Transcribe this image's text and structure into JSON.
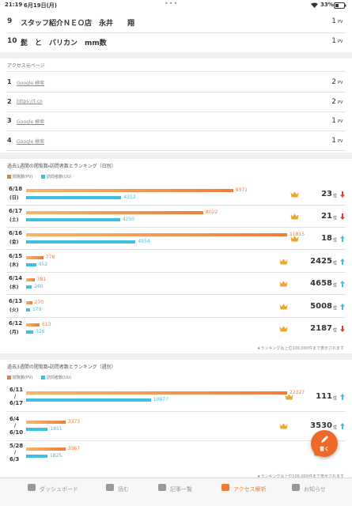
{
  "status_bar": {
    "time": "21:19",
    "date": "6月19日(月)",
    "battery": "33%"
  },
  "article_ranking": {
    "rows": [
      {
        "rank": 9,
        "title": "スタッフ紹介ＮＥＯ店　永井　　翔",
        "count": 1,
        "unit": "PV"
      },
      {
        "rank": 10,
        "title": "髭　と　バリカン　mm数",
        "count": 1,
        "unit": "PV"
      }
    ]
  },
  "referrers": {
    "title": "アクセス元ページ",
    "rows": [
      {
        "rank": 1,
        "source": "Google 検索",
        "count": 2,
        "unit": "PV"
      },
      {
        "rank": 2,
        "source": "https://t.co",
        "count": 2,
        "unit": "PV"
      },
      {
        "rank": 3,
        "source": "Google 検索",
        "count": 1,
        "unit": "PV"
      },
      {
        "rank": 4,
        "source": "Google 検索",
        "count": 1,
        "unit": "PV"
      }
    ]
  },
  "daily": {
    "title": "過去1週間の閲覧数・訪問者数とランキング（日別）",
    "legend": {
      "pv": {
        "name": "閲覧数(PV)",
        "color": "#ef7d3a"
      },
      "uu": {
        "name": "訪問者数(UU)",
        "color": "#3ec0e0"
      }
    },
    "rows": [
      {
        "date": "6/18",
        "weekday": "(日)",
        "pv": 9371,
        "uu": 4312,
        "ranking": 23,
        "rank_unit": "位",
        "trend": "down"
      },
      {
        "date": "6/17",
        "weekday": "(土)",
        "pv": 8022,
        "uu": 4250,
        "ranking": 21,
        "rank_unit": "位",
        "trend": "down"
      },
      {
        "date": "6/16",
        "weekday": "(金)",
        "pv": 11815,
        "uu": 4954,
        "ranking": 18,
        "rank_unit": "位",
        "trend": "up"
      },
      {
        "date": "6/15",
        "weekday": "(木)",
        "pv": 778,
        "uu": 452,
        "ranking": 2425,
        "rank_unit": "位",
        "trend": "up"
      },
      {
        "date": "6/14",
        "weekday": "(水)",
        "pv": 381,
        "uu": 260,
        "ranking": 4658,
        "rank_unit": "位",
        "trend": "up"
      },
      {
        "date": "6/13",
        "weekday": "(火)",
        "pv": 270,
        "uu": 179,
        "ranking": 5008,
        "rank_unit": "位",
        "trend": "up"
      },
      {
        "date": "6/12",
        "weekday": "(月)",
        "pv": 613,
        "uu": 326,
        "ranking": 2187,
        "rank_unit": "位",
        "trend": "down"
      }
    ],
    "note": "★ランキングは上位100,000件まで表示されます"
  },
  "weekly": {
    "title": "過去3週間の閲覧数・訪問者数とランキング（週別）",
    "legend": {
      "pv": {
        "name": "閲覧数(PV)",
        "color": "#ef7d3a"
      },
      "uu": {
        "name": "訪問者数(UU)",
        "color": "#3ec0e0"
      }
    },
    "rows": [
      {
        "start": "6/11",
        "sep": "/",
        "end": "6/17",
        "pv": 22327,
        "uu": 10677,
        "ranking": 111,
        "rank_unit": "位",
        "trend": "up"
      },
      {
        "start": "6/4",
        "sep": "/",
        "end": "6/10",
        "pv": 3373,
        "uu": 1851,
        "ranking": 3530,
        "rank_unit": "位",
        "trend": "up"
      },
      {
        "start": "5/28",
        "sep": "/",
        "end": "6/3",
        "pv": 3367,
        "uu": 1825
      }
    ],
    "note": "★ランキングは上位100,000件まで表示されます"
  },
  "fab": "書く",
  "nav": [
    {
      "label": "ダッシュボード",
      "active": false
    },
    {
      "label": "読む",
      "active": false
    },
    {
      "label": "記事一覧",
      "active": false
    },
    {
      "label": "アクセス解析",
      "active": true
    },
    {
      "label": "お知らせ",
      "active": false
    }
  ]
}
